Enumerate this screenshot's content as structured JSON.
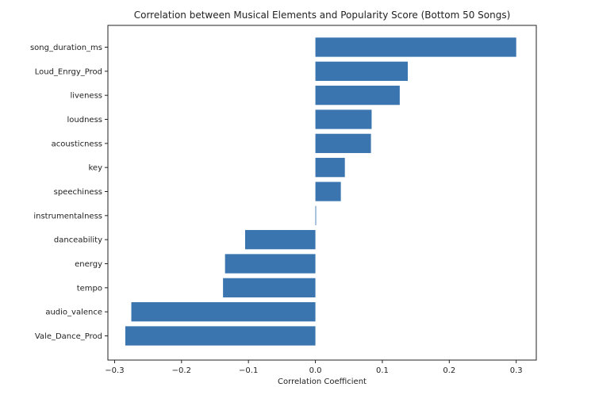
{
  "chart_data": {
    "type": "bar",
    "orientation": "horizontal",
    "title": "Correlation between Musical Elements and Popularity Score (Bottom 50 Songs)",
    "xlabel": "Correlation Coefficient",
    "ylabel": "",
    "xlim": [
      -0.31,
      0.33
    ],
    "x_ticks": [
      -0.3,
      -0.2,
      -0.1,
      0.0,
      0.1,
      0.2,
      0.3
    ],
    "x_tick_labels": [
      "−0.3",
      "−0.2",
      "−0.1",
      "0.0",
      "0.1",
      "0.2",
      "0.3"
    ],
    "categories": [
      "song_duration_ms",
      "Loud_Enrgy_Prod",
      "liveness",
      "loudness",
      "acousticness",
      "key",
      "speechiness",
      "instrumentalness",
      "danceability",
      "energy",
      "tempo",
      "audio_valence",
      "Vale_Dance_Prod"
    ],
    "values": [
      0.3,
      0.138,
      0.126,
      0.084,
      0.083,
      0.044,
      0.038,
      0.001,
      -0.105,
      -0.135,
      -0.138,
      -0.275,
      -0.284
    ],
    "bar_color": "#3a75b0",
    "grid": false,
    "legend": "none"
  }
}
